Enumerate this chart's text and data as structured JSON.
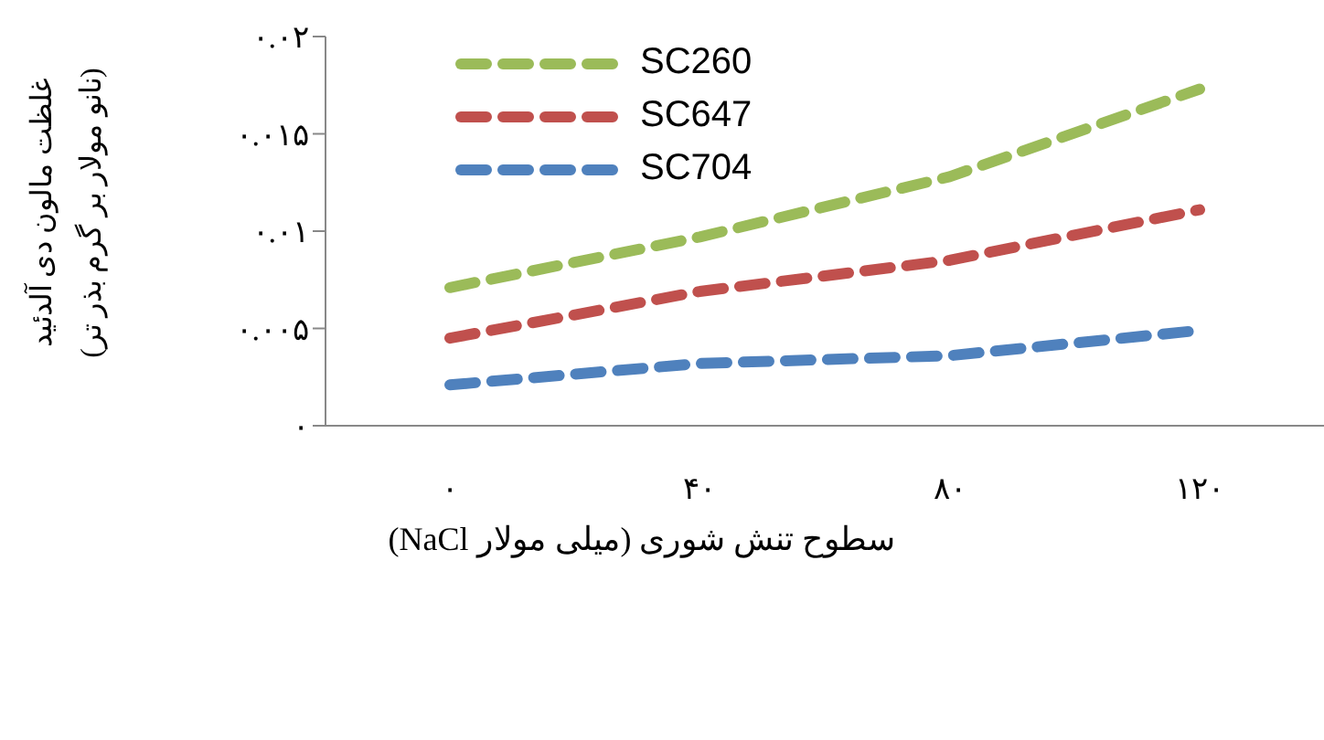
{
  "chart_data": {
    "type": "line",
    "xlabel": "سطوح تنش شوری (میلی مولار NaCl)",
    "ylabel": "غلظت مالون دی آلدئید\n(نانو مولار بر گرم بذر تر)",
    "categories": [
      "۰",
      "۴۰",
      "۸۰",
      "۱۲۰"
    ],
    "series": [
      {
        "name": "SC260",
        "color": "#9bbb59",
        "values": [
          0.0071,
          0.0097,
          0.0128,
          0.0173
        ]
      },
      {
        "name": "SC647",
        "color": "#c0504d",
        "values": [
          0.0045,
          0.0069,
          0.0085,
          0.0111
        ]
      },
      {
        "name": "SC704",
        "color": "#4f81bd",
        "values": [
          0.0021,
          0.0032,
          0.0036,
          0.0049
        ]
      }
    ],
    "ylim": [
      0,
      0.02
    ],
    "yticks": [
      {
        "value": 0,
        "label": "۰"
      },
      {
        "value": 0.005,
        "label": "۰.۰۰۵"
      },
      {
        "value": 0.01,
        "label": "۰.۰۱"
      },
      {
        "value": 0.015,
        "label": "۰.۰۱۵"
      },
      {
        "value": 0.02,
        "label": "۰.۰۲"
      }
    ],
    "grid": false,
    "legend": "top left",
    "marker": "none",
    "line_style": "dashed"
  }
}
